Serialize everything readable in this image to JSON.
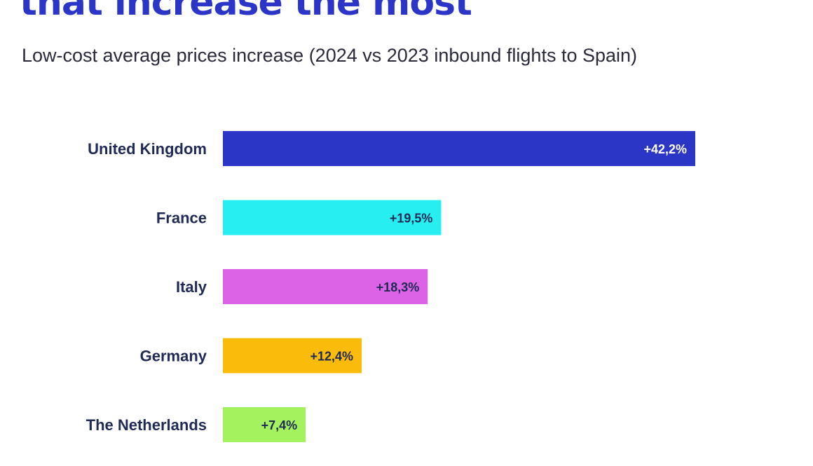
{
  "chart_data": {
    "type": "bar",
    "orientation": "horizontal",
    "title": "that increase the most",
    "subtitle": "Low-cost average prices increase (2024 vs 2023 inbound flights to Spain)",
    "categories": [
      "United Kingdom",
      "France",
      "Italy",
      "Germany",
      "The Netherlands"
    ],
    "values": [
      42.2,
      19.5,
      18.3,
      12.4,
      7.4
    ],
    "value_labels": [
      "+42,2%",
      "+19,5%",
      "+18,3%",
      "+12,4%",
      "+7,4%"
    ],
    "unit": "%",
    "xlim": [
      0,
      42.2
    ],
    "grid": false,
    "legend": "none",
    "colors": [
      "#2b35c6",
      "#27eef0",
      "#dc62e6",
      "#fbbb0a",
      "#a4f25e"
    ],
    "label_colors": [
      "#ffffff",
      "#1f2a55",
      "#1f2a55",
      "#1f2a55",
      "#1f2a55"
    ]
  }
}
